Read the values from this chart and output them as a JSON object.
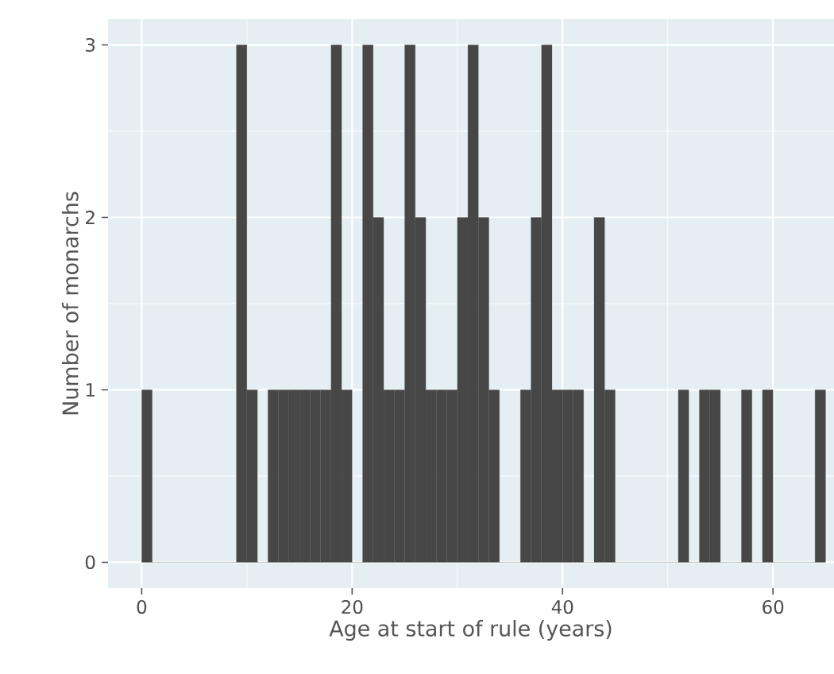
{
  "chart_data": {
    "type": "histogram",
    "xlabel": "Age at start of rule (years)",
    "ylabel": "Number of monarchs",
    "bins": [
      0,
      1,
      2,
      3,
      4,
      5,
      6,
      7,
      8,
      9,
      10,
      11,
      12,
      13,
      14,
      15,
      16,
      17,
      18,
      19,
      20,
      21,
      22,
      23,
      24,
      25,
      26,
      27,
      28,
      29,
      30,
      31,
      32,
      33,
      34,
      35,
      36,
      37,
      38,
      39,
      40,
      41,
      42,
      43,
      44,
      45,
      46,
      47,
      48,
      49,
      50,
      51,
      52,
      53,
      54,
      55,
      56,
      57,
      58,
      59,
      60,
      61,
      62,
      63,
      64,
      65
    ],
    "values": [
      1,
      0,
      0,
      0,
      0,
      0,
      0,
      0,
      0,
      3,
      1,
      0,
      1,
      1,
      1,
      1,
      1,
      1,
      3,
      1,
      0,
      3,
      2,
      1,
      1,
      3,
      2,
      1,
      1,
      1,
      2,
      3,
      2,
      1,
      0,
      0,
      1,
      2,
      3,
      1,
      1,
      1,
      0,
      2,
      1,
      0,
      0,
      0,
      0,
      0,
      0,
      1,
      0,
      1,
      1,
      0,
      0,
      1,
      0,
      1,
      0,
      0,
      0,
      0,
      1
    ],
    "color": "#474747",
    "xlim": [
      -3.2,
      65.8
    ],
    "ylim": [
      -0.15,
      3.15
    ],
    "xticks": [
      0,
      20,
      40,
      60
    ],
    "yticks": [
      0,
      1,
      2,
      3
    ],
    "grid": true
  }
}
